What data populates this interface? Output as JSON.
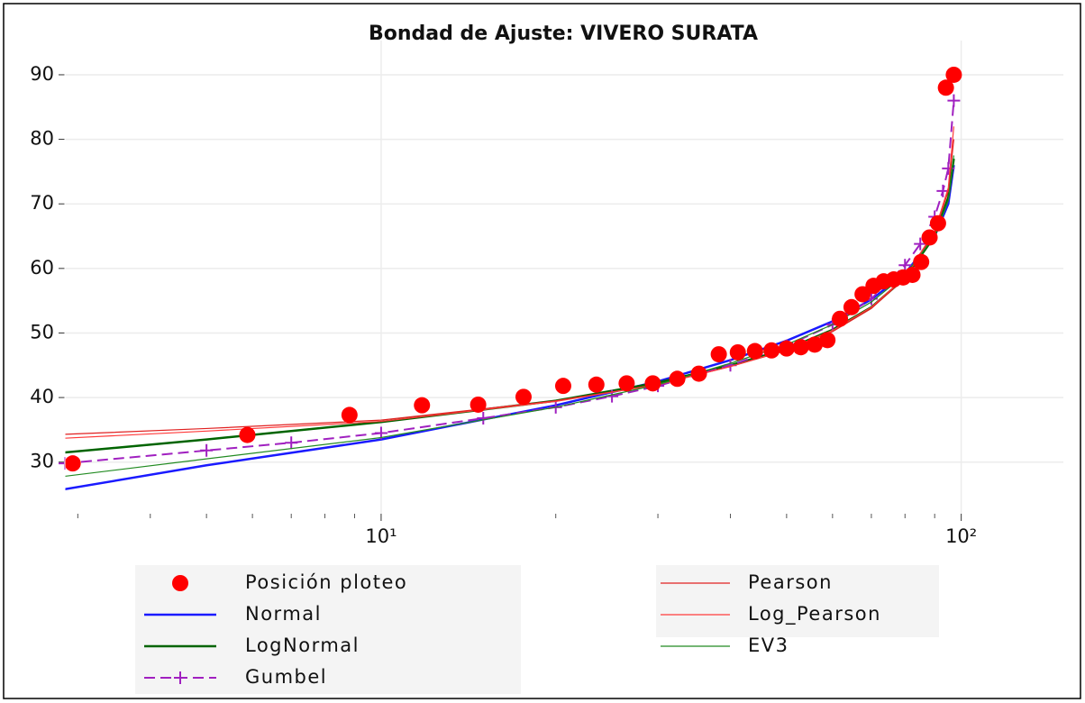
{
  "chart_data": {
    "type": "line",
    "title": "Bondad de Ajuste: VIVERO SURATA",
    "xscale": "log",
    "xlim": [
      2.85,
      150
    ],
    "ylim": [
      22,
      95.3
    ],
    "xticks": [
      {
        "value": 10,
        "label": "10¹"
      },
      {
        "value": 100,
        "label": "10²"
      }
    ],
    "xminorticks": [
      3,
      4,
      5,
      6,
      7,
      8,
      9,
      20,
      30,
      40,
      50,
      60,
      70,
      80,
      90
    ],
    "yticks": [
      30,
      40,
      50,
      60,
      70,
      80,
      90
    ],
    "grid": true,
    "legend": "lower center",
    "series": [
      {
        "name": "Posición ploteo",
        "type": "scatter",
        "marker": "o",
        "color": "#ff0000",
        "x": [
          2.94,
          5.88,
          8.82,
          11.76,
          14.7,
          17.6,
          20.6,
          23.5,
          26.5,
          29.4,
          32.4,
          35.3,
          38.2,
          41.2,
          44.1,
          47.1,
          50,
          52.9,
          55.9,
          58.8,
          61.8,
          64.7,
          67.6,
          70.6,
          73.5,
          76.5,
          79.4,
          82.4,
          85.3,
          88.2,
          91.2,
          94.1,
          97.1
        ],
        "values": [
          29.8,
          34.2,
          37.3,
          38.8,
          38.9,
          40.1,
          41.8,
          42.0,
          42.2,
          42.2,
          42.9,
          43.7,
          46.7,
          47.0,
          47.2,
          47.3,
          47.6,
          47.8,
          48.2,
          48.9,
          52.2,
          54.0,
          56.0,
          57.3,
          58.0,
          58.3,
          58.6,
          59.0,
          61.0,
          64.8,
          67.0,
          88.0,
          90.0
        ]
      },
      {
        "name": "Normal",
        "type": "line",
        "color": "#1a1aff",
        "linewidth": 2.5,
        "x": [
          2.85,
          5,
          10,
          20,
          30,
          40,
          50,
          60,
          70,
          80,
          90,
          95,
          97.1
        ],
        "values": [
          25.8,
          29.5,
          33.5,
          38.8,
          42.5,
          45.8,
          48.8,
          51.8,
          55.2,
          59.2,
          65.0,
          70.0,
          76.0
        ]
      },
      {
        "name": "LogNormal",
        "type": "line",
        "color": "#006400",
        "linewidth": 2.5,
        "x": [
          2.85,
          5,
          10,
          20,
          30,
          40,
          50,
          60,
          70,
          80,
          90,
          95,
          97.1
        ],
        "values": [
          31.5,
          33.5,
          36.2,
          39.5,
          42.3,
          45.0,
          47.5,
          50.5,
          54.0,
          58.5,
          65.0,
          71.0,
          77.0
        ]
      },
      {
        "name": "Gumbel",
        "type": "line",
        "color": "#a020c0",
        "linewidth": 2,
        "linestyle": "dashed",
        "marker": "+",
        "x": [
          2.85,
          5,
          7,
          10,
          15,
          20,
          25,
          30,
          40,
          50,
          60,
          70,
          80,
          85,
          90,
          93,
          95,
          97.1
        ],
        "values": [
          29.8,
          31.8,
          33.0,
          34.5,
          36.8,
          38.5,
          40.2,
          41.8,
          45.0,
          48.0,
          51.3,
          55.3,
          60.5,
          63.8,
          68.0,
          72.0,
          75.5,
          86.0
        ]
      },
      {
        "name": "Pearson",
        "type": "line",
        "color": "#e02020",
        "linewidth": 1.2,
        "x": [
          2.85,
          5,
          10,
          20,
          30,
          40,
          50,
          60,
          70,
          80,
          90,
          95,
          97.1
        ],
        "values": [
          34.3,
          35.2,
          36.5,
          39.5,
          42.0,
          44.8,
          47.3,
          50.2,
          53.8,
          58.5,
          65.5,
          72.0,
          80.0
        ]
      },
      {
        "name": "Log_Pearson",
        "type": "line",
        "color": "#ff3a3a",
        "linewidth": 1.2,
        "x": [
          2.85,
          5,
          10,
          20,
          30,
          40,
          50,
          60,
          70,
          80,
          90,
          95,
          97.1
        ],
        "values": [
          33.7,
          34.8,
          36.3,
          39.4,
          42.0,
          44.8,
          47.4,
          50.4,
          54.0,
          58.7,
          65.8,
          72.5,
          82.0
        ]
      },
      {
        "name": "EV3",
        "type": "line",
        "color": "#228b22",
        "linewidth": 1.2,
        "x": [
          2.85,
          5,
          10,
          20,
          30,
          40,
          50,
          60,
          70,
          80,
          90,
          95,
          97.1
        ],
        "values": [
          27.8,
          30.5,
          33.8,
          38.5,
          42.0,
          45.3,
          48.2,
          51.3,
          54.8,
          59.0,
          65.0,
          70.5,
          77.5
        ]
      }
    ]
  }
}
